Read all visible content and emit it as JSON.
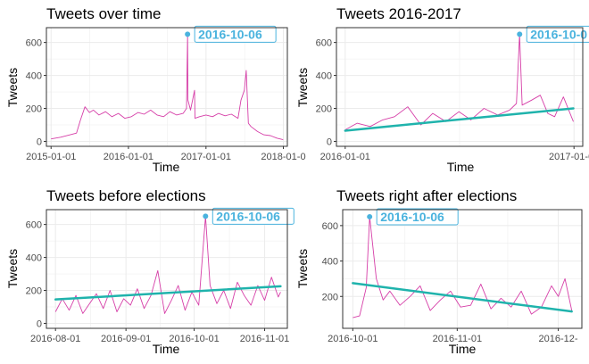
{
  "colors": {
    "series": "#d63fa8",
    "trend": "#1fb3ac",
    "annotation": "#4ab3de",
    "grid": "#ebebeb",
    "frame": "#333333"
  },
  "chart_data": [
    {
      "type": "line",
      "title": "Tweets over time",
      "xlabel": "Time",
      "ylabel": "Tweets",
      "xlim": [
        "2014-12-10",
        "2018-01-20"
      ],
      "ylim": [
        -30,
        690
      ],
      "xticks": [
        {
          "label": "2015-01-01",
          "date": "2015-01-01"
        },
        {
          "label": "2016-01-01",
          "date": "2016-01-01"
        },
        {
          "label": "2017-01-01",
          "date": "2017-01-01"
        },
        {
          "label": "2018-01-0",
          "date": "2018-01-01"
        }
      ],
      "yticks": [
        0,
        200,
        400,
        600
      ],
      "series": [
        {
          "x": [
            "2015-01-01",
            "2015-02-15",
            "2015-04-01",
            "2015-05-01",
            "2015-05-20",
            "2015-06-10",
            "2015-07-01",
            "2015-07-20",
            "2015-08-15",
            "2015-09-15",
            "2015-10-15",
            "2015-11-15",
            "2015-12-15",
            "2016-01-15",
            "2016-02-15",
            "2016-03-15",
            "2016-04-15",
            "2016-05-15",
            "2016-06-15",
            "2016-07-15",
            "2016-08-15",
            "2016-09-15",
            "2016-10-01",
            "2016-10-06",
            "2016-10-08",
            "2016-10-20",
            "2016-11-08",
            "2016-11-10",
            "2016-12-01",
            "2017-01-01",
            "2017-02-01",
            "2017-03-01",
            "2017-04-01",
            "2017-05-01",
            "2017-06-01",
            "2017-06-15",
            "2017-07-01",
            "2017-07-10",
            "2017-07-20",
            "2017-08-01",
            "2017-09-01",
            "2017-10-01",
            "2017-11-01",
            "2017-12-01",
            "2017-12-31"
          ],
          "y": [
            15,
            25,
            40,
            50,
            130,
            210,
            175,
            190,
            160,
            180,
            150,
            170,
            140,
            150,
            175,
            165,
            190,
            160,
            150,
            180,
            160,
            170,
            200,
            650,
            250,
            190,
            310,
            140,
            150,
            160,
            150,
            170,
            155,
            165,
            140,
            250,
            310,
            430,
            110,
            90,
            60,
            40,
            35,
            20,
            10
          ]
        }
      ],
      "annotation": {
        "label": "2016-10-06",
        "x": "2016-10-06",
        "y": 650
      }
    },
    {
      "type": "line",
      "title": "Tweets 2016-2017",
      "xlabel": "Time",
      "ylabel": "Tweets",
      "xlim": [
        "2015-12-18",
        "2017-01-15"
      ],
      "ylim": [
        -30,
        690
      ],
      "xticks": [
        {
          "label": "2016-01-01",
          "date": "2016-01-01"
        },
        {
          "label": "2017-01-01",
          "date": "2017-01-01"
        }
      ],
      "yticks": [
        0,
        200,
        400,
        600
      ],
      "series": [
        {
          "x": [
            "2016-01-01",
            "2016-01-20",
            "2016-02-10",
            "2016-03-01",
            "2016-03-20",
            "2016-04-10",
            "2016-05-01",
            "2016-05-20",
            "2016-06-10",
            "2016-07-01",
            "2016-07-20",
            "2016-08-10",
            "2016-09-01",
            "2016-09-20",
            "2016-10-01",
            "2016-10-06",
            "2016-10-10",
            "2016-10-25",
            "2016-11-08",
            "2016-11-20",
            "2016-12-01",
            "2016-12-15",
            "2016-12-31"
          ],
          "y": [
            70,
            110,
            90,
            130,
            150,
            210,
            100,
            170,
            120,
            180,
            130,
            200,
            160,
            190,
            230,
            650,
            220,
            250,
            280,
            170,
            150,
            270,
            120
          ]
        }
      ],
      "trend": {
        "x": [
          "2016-01-01",
          "2016-12-31"
        ],
        "y": [
          65,
          200
        ]
      },
      "annotation": {
        "label": "2016-10-0",
        "x": "2016-10-06",
        "y": 650
      }
    },
    {
      "type": "line",
      "title": "Tweets before elections",
      "xlabel": "Time",
      "ylabel": "Tweets",
      "xlim": [
        "2016-07-28",
        "2016-11-11"
      ],
      "ylim": [
        -30,
        690
      ],
      "xticks": [
        {
          "label": "2016-08-01",
          "date": "2016-08-01"
        },
        {
          "label": "2016-09-01",
          "date": "2016-09-01"
        },
        {
          "label": "2016-10-01",
          "date": "2016-10-01"
        },
        {
          "label": "2016-11-01",
          "date": "2016-11-01"
        }
      ],
      "yticks": [
        0,
        200,
        400,
        600
      ],
      "series": [
        {
          "x": [
            "2016-08-01",
            "2016-08-04",
            "2016-08-07",
            "2016-08-10",
            "2016-08-13",
            "2016-08-16",
            "2016-08-19",
            "2016-08-22",
            "2016-08-25",
            "2016-08-28",
            "2016-08-31",
            "2016-09-03",
            "2016-09-06",
            "2016-09-09",
            "2016-09-12",
            "2016-09-15",
            "2016-09-18",
            "2016-09-21",
            "2016-09-24",
            "2016-09-27",
            "2016-09-30",
            "2016-10-03",
            "2016-10-06",
            "2016-10-08",
            "2016-10-11",
            "2016-10-14",
            "2016-10-17",
            "2016-10-20",
            "2016-10-23",
            "2016-10-26",
            "2016-10-29",
            "2016-11-01",
            "2016-11-04",
            "2016-11-07",
            "2016-11-08"
          ],
          "y": [
            70,
            150,
            80,
            170,
            60,
            120,
            180,
            90,
            200,
            70,
            150,
            110,
            210,
            90,
            170,
            320,
            60,
            140,
            230,
            80,
            190,
            110,
            650,
            230,
            120,
            200,
            90,
            250,
            170,
            110,
            230,
            140,
            280,
            160,
            190
          ]
        }
      ],
      "trend": {
        "x": [
          "2016-08-01",
          "2016-11-08"
        ],
        "y": [
          145,
          225
        ]
      },
      "annotation": {
        "label": "2016-10-06",
        "x": "2016-10-06",
        "y": 650
      }
    },
    {
      "type": "line",
      "title": "Tweets right after elections",
      "xlabel": "Time",
      "ylabel": "Tweets",
      "xlim": [
        "2016-09-28",
        "2016-12-08"
      ],
      "ylim": [
        20,
        690
      ],
      "xticks": [
        {
          "label": "2016-10-01",
          "date": "2016-10-01"
        },
        {
          "label": "2016-11-01",
          "date": "2016-11-01"
        },
        {
          "label": "2016-12-",
          "date": "2016-12-01"
        }
      ],
      "yticks": [
        200,
        400,
        600
      ],
      "series": [
        {
          "x": [
            "2016-10-01",
            "2016-10-03",
            "2016-10-05",
            "2016-10-06",
            "2016-10-08",
            "2016-10-10",
            "2016-10-12",
            "2016-10-15",
            "2016-10-18",
            "2016-10-21",
            "2016-10-24",
            "2016-10-27",
            "2016-10-30",
            "2016-11-02",
            "2016-11-05",
            "2016-11-08",
            "2016-11-11",
            "2016-11-14",
            "2016-11-17",
            "2016-11-20",
            "2016-11-23",
            "2016-11-26",
            "2016-11-29",
            "2016-12-01",
            "2016-12-03",
            "2016-12-05"
          ],
          "y": [
            80,
            90,
            250,
            650,
            300,
            180,
            230,
            150,
            200,
            260,
            120,
            180,
            230,
            140,
            150,
            270,
            130,
            190,
            140,
            230,
            100,
            140,
            260,
            200,
            300,
            120
          ]
        }
      ],
      "trend": {
        "x": [
          "2016-10-01",
          "2016-12-05"
        ],
        "y": [
          275,
          115
        ]
      },
      "annotation": {
        "label": "2016-10-06",
        "x": "2016-10-06",
        "y": 650
      }
    }
  ]
}
